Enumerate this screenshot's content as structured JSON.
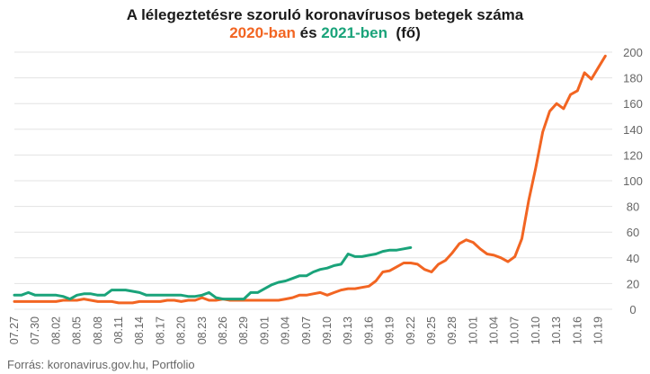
{
  "chart_data": {
    "type": "line",
    "title_line1": "A lélegeztetésre szoruló koronavírusos betegek száma",
    "title_line2": {
      "part1": "2020-ban",
      "part2": " és ",
      "part3": "2021-ben",
      "part4": "  (fő)"
    },
    "colors": {
      "series_2020": "#f26522",
      "series_2021": "#1aa37a",
      "title": "#1a1a1a",
      "ticks": "#666666",
      "grid": "#e3e3e3"
    },
    "ylim": [
      0,
      200
    ],
    "y_ticks": [
      "0",
      "20",
      "40",
      "60",
      "80",
      "100",
      "120",
      "140",
      "160",
      "180",
      "200"
    ],
    "x_tick_labels": [
      "07.27",
      "07.30",
      "08.02",
      "08.05",
      "08.08",
      "08.11",
      "08.14",
      "08.17",
      "08.20",
      "08.23",
      "08.26",
      "08.29",
      "09.01",
      "09.04",
      "09.07",
      "09.10",
      "09.13",
      "09.16",
      "09.19",
      "09.22",
      "09.25",
      "09.28",
      "10.01",
      "10.04",
      "10.07",
      "10.10",
      "10.13",
      "10.16",
      "10.19"
    ],
    "x_start_label": "07.27",
    "series": [
      {
        "key": "s2020",
        "values": [
          6,
          6,
          6,
          6,
          6,
          6,
          6,
          7,
          7,
          7,
          8,
          7,
          6,
          6,
          6,
          5,
          5,
          5,
          6,
          6,
          6,
          6,
          7,
          7,
          6,
          7,
          7,
          9,
          7,
          7,
          8,
          7,
          7,
          7,
          7,
          7,
          7,
          7,
          7,
          8,
          9,
          11,
          11,
          12,
          13,
          11,
          13,
          15,
          16,
          16,
          17,
          18,
          22,
          29,
          30,
          33,
          36,
          36,
          35,
          31,
          29,
          35,
          38,
          44,
          51,
          54,
          52,
          47,
          43,
          42,
          40,
          37,
          41,
          55,
          85,
          110,
          138,
          154,
          160,
          156,
          167,
          170,
          184,
          179,
          188,
          197
        ]
      },
      {
        "key": "s2021",
        "values": [
          11,
          11,
          13,
          11,
          11,
          11,
          11,
          10,
          8,
          11,
          12,
          12,
          11,
          11,
          15,
          15,
          15,
          14,
          13,
          11,
          11,
          11,
          11,
          11,
          11,
          10,
          10,
          11,
          13,
          9,
          8,
          8,
          8,
          8,
          13,
          13,
          16,
          19,
          21,
          22,
          24,
          26,
          26,
          29,
          31,
          32,
          34,
          35,
          43,
          41,
          41,
          42,
          43,
          45,
          46,
          46,
          47,
          48
        ]
      }
    ]
  },
  "source": "Forrás: koronavirus.gov.hu, Portfolio"
}
